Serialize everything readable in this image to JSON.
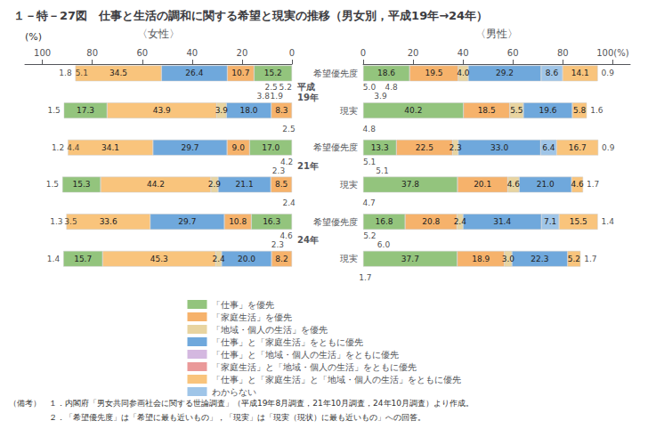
{
  "chart_data": {
    "type": "bar",
    "orientation": "horizontal",
    "stacked": true,
    "data_labels": true,
    "grid": false,
    "legend": "bottom",
    "title": "１－特－27図　仕事と生活の調和に関する希望と現実の推移（男女別，平成19年→24年）",
    "unit_label": "(%)",
    "groups": [
      "平成\n19年",
      "21年",
      "24年"
    ],
    "row_labels": [
      "希望優先度",
      "現実"
    ],
    "legend_items": [
      {
        "name": "「仕事」を優先",
        "color": "#93c47d"
      },
      {
        "name": "「家庭生活」を優先",
        "color": "#f6b26b"
      },
      {
        "name": "「地域・個人の生活」を優先",
        "color": "#e8d4a0"
      },
      {
        "name": "「仕事」と「家庭生活」をともに優先",
        "color": "#6fa8dc"
      },
      {
        "name": "「仕事」と「地域・個人の生活」をともに優先",
        "color": "#d4b8e0"
      },
      {
        "name": "「家庭生活」と「地域・個人の生活」をともに優先",
        "color": "#ea9999"
      },
      {
        "name": "「仕事」と「家庭生活」と「地域・個人の生活」をともに優先",
        "color": "#f9c47c"
      },
      {
        "name": "わからない",
        "color": "#9fc5e8"
      }
    ],
    "panels": [
      {
        "title": "〈女性〉",
        "xlim": [
          107,
          0
        ],
        "xticks": [
          100,
          80,
          60,
          40,
          20,
          0
        ],
        "bars": [
          {
            "hope": {
              "values": [
                15.2,
                10.7,
                26.4,
                34.5
              ],
              "value_labels": [
                "15.2",
                "10.7",
                "26.4",
                "34.5"
              ],
              "colors": [
                "#93c47d",
                "#f6b26b",
                "#6fa8dc",
                "#f9c47c"
              ],
              "outside": 1.8,
              "thin": 5.1,
              "sub_values": [
                5.2,
                1.9,
                2.5,
                3.8
              ],
              "sub_value_labels": [
                "5.2",
                "1.9",
                "2.5",
                "3.8"
              ]
            },
            "real": {
              "values": [
                8.3,
                18.0,
                3.9,
                43.9,
                17.3
              ],
              "value_labels": [
                "8.3",
                "18.0",
                "3.9",
                "43.9",
                "17.3"
              ],
              "colors": [
                "#f6b26b",
                "#6fa8dc",
                "#e8d4a0",
                "#f9c47c",
                "#93c47d"
              ],
              "outside": 1.5,
              "sub_values": [
                2.5
              ],
              "sub_value_labels": [
                "2.5"
              ]
            }
          },
          {
            "hope": {
              "values": [
                17.0,
                9.0,
                29.7,
                34.1
              ],
              "value_labels": [
                "17.0",
                "9.0",
                "29.7",
                "34.1"
              ],
              "colors": [
                "#93c47d",
                "#f6b26b",
                "#6fa8dc",
                "#f9c47c"
              ],
              "outside": 1.2,
              "thin": 4.4,
              "sub_values": [
                4.2,
                2.3
              ],
              "sub_value_labels": [
                "4.2",
                "2.3"
              ]
            },
            "real": {
              "values": [
                8.5,
                21.1,
                2.9,
                44.2,
                15.3
              ],
              "value_labels": [
                "8.5",
                "21.1",
                "2.9",
                "44.2",
                "15.3"
              ],
              "colors": [
                "#f6b26b",
                "#6fa8dc",
                "#e8d4a0",
                "#f9c47c",
                "#93c47d"
              ],
              "outside": 1.5,
              "sub_values": [
                2.4
              ],
              "sub_value_labels": [
                "2.4"
              ]
            }
          },
          {
            "hope": {
              "values": [
                16.3,
                10.8,
                29.7,
                33.6
              ],
              "value_labels": [
                "16.3",
                "10.8",
                "29.7",
                "33.6"
              ],
              "colors": [
                "#93c47d",
                "#f6b26b",
                "#6fa8dc",
                "#f9c47c"
              ],
              "outside": 1.3,
              "thin": 3.5,
              "sub_values": [
                4.6,
                2.3
              ],
              "sub_value_labels": [
                "4.6",
                "2.3"
              ]
            },
            "real": {
              "values": [
                8.2,
                20.0,
                2.4,
                45.3,
                15.7
              ],
              "value_labels": [
                "8.2",
                "20.0",
                "2.4",
                "45.3",
                "15.7"
              ],
              "colors": [
                "#f6b26b",
                "#6fa8dc",
                "#e8d4a0",
                "#f9c47c",
                "#93c47d"
              ],
              "outside": 1.4
            }
          }
        ]
      },
      {
        "title": "〈男性〉",
        "xlim": [
          0,
          107
        ],
        "xticks": [
          0,
          20,
          40,
          60,
          80,
          {
            "value": 100,
            "label": "100(%)"
          }
        ],
        "bars": [
          {
            "hope": {
              "values": [
                18.6,
                19.5,
                4.0,
                29.2,
                8.6,
                14.1
              ],
              "value_labels": [
                "18.6",
                "19.5",
                "4.0",
                "29.2",
                "8.6",
                "14.1"
              ],
              "colors": [
                "#93c47d",
                "#f6b26b",
                "#e8d4a0",
                "#6fa8dc",
                "#9fc5e8",
                "#f9c47c"
              ],
              "outside": 0.9,
              "sub_values": [
                5.0,
                3.9,
                4.8
              ],
              "sub_value_labels": [
                "5.0",
                "3.9",
                "4.8"
              ]
            },
            "real": {
              "values": [
                40.2,
                18.5,
                5.5,
                19.6,
                5.8
              ],
              "value_labels": [
                "40.2",
                "18.5",
                "5.5",
                "19.6",
                "5.8"
              ],
              "colors": [
                "#93c47d",
                "#f6b26b",
                "#e8d4a0",
                "#6fa8dc",
                "#f9c47c"
              ],
              "outside": 1.6,
              "sub_values": [
                4.8
              ],
              "sub_value_labels": [
                "4.8"
              ]
            }
          },
          {
            "hope": {
              "values": [
                13.3,
                22.5,
                2.3,
                33.0,
                6.4,
                16.7
              ],
              "value_labels": [
                "13.3",
                "22.5",
                "2.3",
                "33.0",
                "6.4",
                "16.7"
              ],
              "colors": [
                "#93c47d",
                "#f6b26b",
                "#e8d4a0",
                "#6fa8dc",
                "#9fc5e8",
                "#f9c47c"
              ],
              "outside": 0.9,
              "sub_values": [
                5.1,
                5.1
              ],
              "sub_value_labels": [
                "5.1",
                "5.1"
              ]
            },
            "real": {
              "values": [
                37.8,
                20.1,
                4.6,
                21.0,
                4.6
              ],
              "value_labels": [
                "37.8",
                "20.1",
                "4.6",
                "21.0",
                "4.6"
              ],
              "colors": [
                "#93c47d",
                "#f6b26b",
                "#e8d4a0",
                "#6fa8dc",
                "#f9c47c"
              ],
              "outside": 1.7,
              "sub_values": [
                4.7
              ],
              "sub_value_labels": [
                "4.7"
              ]
            }
          },
          {
            "hope": {
              "values": [
                16.8,
                20.8,
                2.4,
                31.4,
                7.1,
                15.5
              ],
              "value_labels": [
                "16.8",
                "20.8",
                "2.4",
                "31.4",
                "7.1",
                "15.5"
              ],
              "colors": [
                "#93c47d",
                "#f6b26b",
                "#e8d4a0",
                "#6fa8dc",
                "#9fc5e8",
                "#f9c47c"
              ],
              "outside": 1.4,
              "sub_values": [
                5.2,
                6.0
              ],
              "sub_value_labels": [
                "5.2",
                "6.0"
              ]
            },
            "real": {
              "values": [
                37.7,
                18.9,
                3.0,
                22.3,
                5.2
              ],
              "value_labels": [
                "37.7",
                "18.9",
                "3.0",
                "22.3",
                "5.2"
              ],
              "colors": [
                "#93c47d",
                "#f6b26b",
                "#e8d4a0",
                "#6fa8dc",
                "#f9c47c"
              ],
              "outside": 1.7,
              "sub_values": [
                1.7
              ],
              "sub_value_labels": [
                "1.7"
              ]
            }
          }
        ]
      }
    ],
    "notes": [
      "（備考）　１．内閣府「男女共同参画社会に関する世論調査」（平成19年8月調査，21年10月調査，24年10月調査）より作成。",
      "　　　　　２．「希望優先度」は「希望に最も近いもの」，「現実」は「現実（現状）に最も近いもの」への回答。"
    ]
  }
}
